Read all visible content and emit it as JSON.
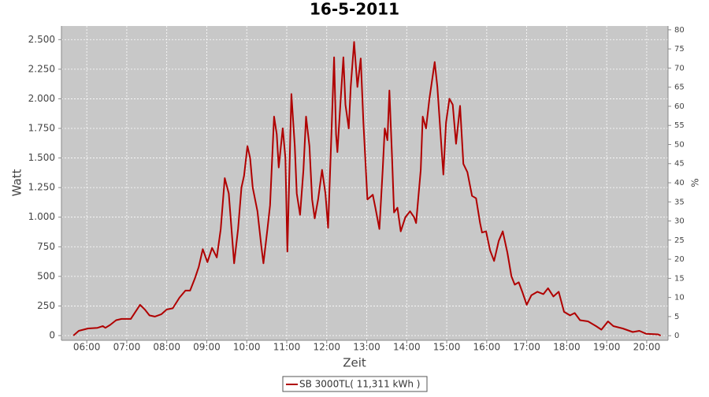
{
  "chart_data": {
    "type": "line",
    "title": "16-5-2011",
    "xlabel": "Zeit",
    "ylabel": "Watt",
    "y2label": "%",
    "x": [
      "05:40",
      "05:48",
      "05:55",
      "06:02",
      "06:16",
      "06:24",
      "06:28",
      "06:35",
      "06:44",
      "06:52",
      "06:59",
      "07:06",
      "07:13",
      "07:20",
      "07:27",
      "07:34",
      "07:42",
      "07:52",
      "08:00",
      "08:09",
      "08:19",
      "08:28",
      "08:35",
      "08:42",
      "08:48",
      "08:54",
      "09:01",
      "09:08",
      "09:15",
      "09:21",
      "09:27",
      "09:33",
      "09:41",
      "09:47",
      "09:52",
      "09:56",
      "10:01",
      "10:05",
      "10:09",
      "10:16",
      "10:22",
      "10:25",
      "10:31",
      "10:35",
      "10:41",
      "10:45",
      "10:48",
      "10:54",
      "10:58",
      "11:01",
      "11:07",
      "11:12",
      "11:15",
      "11:20",
      "11:25",
      "11:29",
      "11:34",
      "11:38",
      "11:42",
      "11:47",
      "11:53",
      "11:58",
      "12:02",
      "12:07",
      "12:11",
      "12:14",
      "12:16",
      "12:21",
      "12:25",
      "12:28",
      "12:33",
      "12:36",
      "12:41",
      "12:46",
      "12:51",
      "12:55",
      "13:01",
      "13:09",
      "13:13",
      "13:19",
      "13:24",
      "13:27",
      "13:31",
      "13:34",
      "13:38",
      "13:41",
      "13:46",
      "13:51",
      "13:58",
      "14:05",
      "14:11",
      "14:14",
      "14:21",
      "14:24",
      "14:29",
      "14:34",
      "14:42",
      "14:46",
      "14:52",
      "14:55",
      "14:59",
      "15:04",
      "15:09",
      "15:14",
      "15:20",
      "15:25",
      "15:31",
      "15:38",
      "15:44",
      "15:50",
      "15:53",
      "15:59",
      "16:05",
      "16:11",
      "16:18",
      "16:24",
      "16:31",
      "16:37",
      "16:42",
      "16:48",
      "16:54",
      "17:00",
      "17:07",
      "17:16",
      "17:25",
      "17:32",
      "17:40",
      "17:48",
      "17:56",
      "18:05",
      "18:12",
      "18:20",
      "18:32",
      "18:44",
      "18:52",
      "19:02",
      "19:10",
      "19:24",
      "19:39",
      "19:49",
      "19:59",
      "20:17",
      "20:21"
    ],
    "series": [
      {
        "name": "SB 3000TL( 11,311 kWh )",
        "color": "#b00000",
        "values": [
          0,
          40,
          50,
          60,
          65,
          80,
          65,
          90,
          130,
          140,
          140,
          140,
          200,
          260,
          220,
          170,
          160,
          180,
          220,
          230,
          320,
          380,
          380,
          480,
          580,
          730,
          620,
          740,
          660,
          900,
          1330,
          1200,
          610,
          900,
          1250,
          1350,
          1600,
          1500,
          1250,
          1050,
          750,
          610,
          900,
          1100,
          1850,
          1700,
          1420,
          1750,
          1500,
          710,
          2040,
          1600,
          1200,
          1020,
          1400,
          1850,
          1600,
          1150,
          990,
          1150,
          1400,
          1200,
          910,
          1700,
          2350,
          1700,
          1550,
          2000,
          2350,
          1950,
          1750,
          2100,
          2480,
          2100,
          2340,
          1800,
          1150,
          1190,
          1080,
          900,
          1400,
          1750,
          1650,
          2070,
          1500,
          1040,
          1080,
          880,
          1000,
          1050,
          1000,
          950,
          1400,
          1850,
          1750,
          2000,
          2310,
          2100,
          1600,
          1360,
          1800,
          2000,
          1950,
          1620,
          1940,
          1450,
          1380,
          1180,
          1160,
          950,
          870,
          880,
          720,
          630,
          800,
          880,
          700,
          500,
          430,
          450,
          360,
          260,
          340,
          370,
          350,
          400,
          330,
          370,
          200,
          170,
          190,
          130,
          120,
          80,
          50,
          120,
          80,
          60,
          30,
          40,
          15,
          10,
          0
        ]
      }
    ],
    "xlim": [
      "05:22",
      "20:32"
    ],
    "xticks": [
      "06:00",
      "07:00",
      "08:00",
      "09:00",
      "10:00",
      "11:00",
      "12:00",
      "13:00",
      "14:00",
      "15:00",
      "16:00",
      "17:00",
      "18:00",
      "19:00",
      "20:00"
    ],
    "ylim": [
      -40,
      2615
    ],
    "yticks": [
      0,
      250,
      500,
      750,
      {
        "value": 1000,
        "label": "1.000"
      },
      {
        "value": 1250,
        "label": "1.250"
      },
      {
        "value": 1500,
        "label": "1.500"
      },
      {
        "value": 1750,
        "label": "1.750"
      },
      {
        "value": 2000,
        "label": "2.000"
      },
      {
        "value": 2250,
        "label": "2.250"
      },
      {
        "value": 2500,
        "label": "2.500"
      }
    ],
    "y2lim": [
      -1.2,
      81
    ],
    "y2ticks": [
      0,
      5,
      10,
      15,
      20,
      25,
      30,
      35,
      40,
      45,
      50,
      55,
      60,
      65,
      70,
      75,
      80
    ],
    "grid": true
  }
}
